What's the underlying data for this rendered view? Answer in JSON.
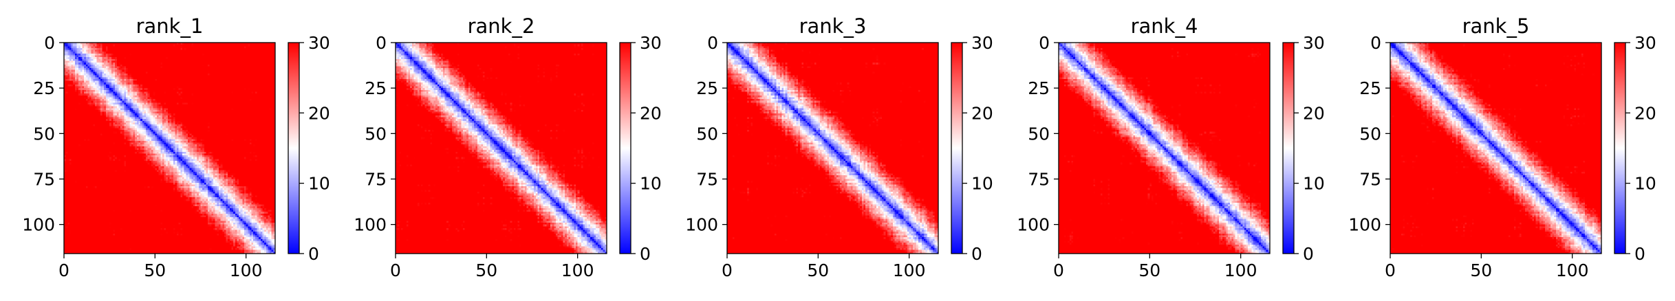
{
  "chart_data": [
    {
      "type": "heatmap",
      "title": "rank_1",
      "matrix_size": 116,
      "x_ticks": [
        0,
        50,
        100
      ],
      "y_ticks": [
        0,
        25,
        50,
        75,
        100
      ],
      "xlim": [
        0,
        116
      ],
      "ylim": [
        116,
        0
      ],
      "colorbar": {
        "ticks": [
          0,
          10,
          20,
          30
        ],
        "range": [
          0,
          30
        ]
      },
      "colormap": [
        "#0000ff",
        "#ffffff",
        "#ff0000"
      ],
      "seed": 11
    },
    {
      "type": "heatmap",
      "title": "rank_2",
      "matrix_size": 116,
      "x_ticks": [
        0,
        50,
        100
      ],
      "y_ticks": [
        0,
        25,
        50,
        75,
        100
      ],
      "xlim": [
        0,
        116
      ],
      "ylim": [
        116,
        0
      ],
      "colorbar": {
        "ticks": [
          0,
          10,
          20,
          30
        ],
        "range": [
          0,
          30
        ]
      },
      "colormap": [
        "#0000ff",
        "#ffffff",
        "#ff0000"
      ],
      "seed": 23
    },
    {
      "type": "heatmap",
      "title": "rank_3",
      "matrix_size": 116,
      "x_ticks": [
        0,
        50,
        100
      ],
      "y_ticks": [
        0,
        25,
        50,
        75,
        100
      ],
      "xlim": [
        0,
        116
      ],
      "ylim": [
        116,
        0
      ],
      "colorbar": {
        "ticks": [
          0,
          10,
          20,
          30
        ],
        "range": [
          0,
          30
        ]
      },
      "colormap": [
        "#0000ff",
        "#ffffff",
        "#ff0000"
      ],
      "seed": 37
    },
    {
      "type": "heatmap",
      "title": "rank_4",
      "matrix_size": 116,
      "x_ticks": [
        0,
        50,
        100
      ],
      "y_ticks": [
        0,
        25,
        50,
        75,
        100
      ],
      "xlim": [
        0,
        116
      ],
      "ylim": [
        116,
        0
      ],
      "colorbar": {
        "ticks": [
          0,
          10,
          20,
          30
        ],
        "range": [
          0,
          30
        ]
      },
      "colormap": [
        "#0000ff",
        "#ffffff",
        "#ff0000"
      ],
      "seed": 41
    },
    {
      "type": "heatmap",
      "title": "rank_5",
      "matrix_size": 116,
      "x_ticks": [
        0,
        50,
        100
      ],
      "y_ticks": [
        0,
        25,
        50,
        75,
        100
      ],
      "xlim": [
        0,
        116
      ],
      "ylim": [
        116,
        0
      ],
      "colorbar": {
        "ticks": [
          0,
          10,
          20,
          30
        ],
        "range": [
          0,
          30
        ]
      },
      "colormap": [
        "#0000ff",
        "#ffffff",
        "#ff0000"
      ],
      "seed": 53
    }
  ]
}
